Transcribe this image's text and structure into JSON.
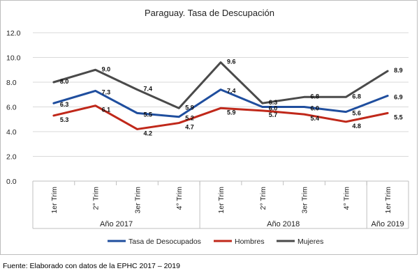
{
  "chart_data": {
    "type": "line",
    "title": "Paraguay. Tasa de Descupación",
    "categories": [
      "1er Trim",
      "2° Trim",
      "3er Trim",
      "4° Trim",
      "1er Trim",
      "2° Trim",
      "3er Trim",
      "4° Trim",
      "1er Trim"
    ],
    "groups": [
      {
        "label": "Año 2017",
        "span": 4
      },
      {
        "label": "Año 2018",
        "span": 4
      },
      {
        "label": "Año 2019",
        "span": 1
      }
    ],
    "ylim": [
      0,
      12
    ],
    "yticks": [
      0,
      2,
      4,
      6,
      8,
      10,
      12
    ],
    "ytick_labels": [
      "0.0",
      "2.0",
      "4.0",
      "6.0",
      "8.0",
      "10.0",
      "12.0"
    ],
    "grid": true,
    "legend_position": "bottom",
    "series": [
      {
        "name": "Tasa de Desocupados",
        "color": "#1f4e9e",
        "values": [
          6.3,
          7.3,
          5.5,
          5.2,
          7.4,
          6.0,
          6.0,
          5.6,
          6.9
        ],
        "labels": [
          "6.3",
          "7.3",
          "5.5",
          "5.2",
          "7.4",
          "6.0",
          "6.0",
          "5.6",
          "6.9"
        ]
      },
      {
        "name": "Hombres",
        "color": "#c0281a",
        "values": [
          5.3,
          6.1,
          4.2,
          4.7,
          5.9,
          5.7,
          5.4,
          4.8,
          5.5
        ],
        "labels": [
          "5.3",
          "6.1",
          "4.2",
          "4.7",
          "5.9",
          "5.7",
          "5.4",
          "4.8",
          "5.5"
        ]
      },
      {
        "name": "Mujeres",
        "color": "#4a4a4a",
        "values": [
          8.0,
          9.0,
          7.4,
          5.9,
          9.6,
          6.3,
          6.8,
          6.8,
          8.9
        ],
        "labels": [
          "8.0",
          "9.0",
          "7.4",
          "5.9",
          "9.6",
          "6.3",
          "6.8",
          "6.8",
          "8.9"
        ]
      }
    ]
  },
  "source": "Fuente: Elaborado con datos de la EPHC 2017 – 2019"
}
